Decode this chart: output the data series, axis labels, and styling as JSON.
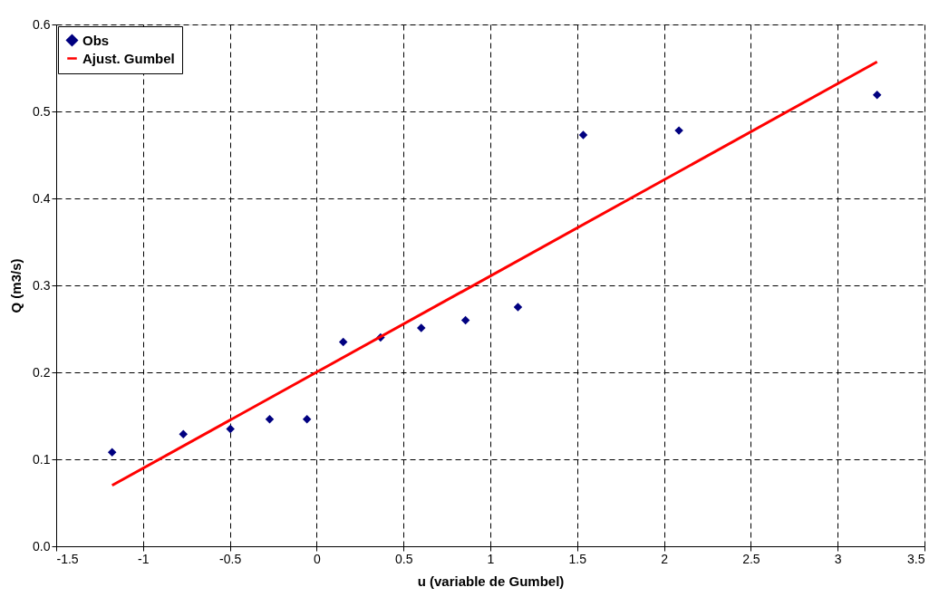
{
  "chart_data": {
    "type": "scatter",
    "xlabel": "u (variable de Gumbel)",
    "ylabel": "Q (m3/s)",
    "series": [
      {
        "name": "Obs",
        "color": "#000080",
        "marker": "diamond",
        "x": [
          -1.178,
          -0.768,
          -0.497,
          -0.271,
          -0.056,
          0.153,
          0.368,
          0.602,
          0.857,
          1.159,
          1.535,
          2.086,
          3.227
        ],
        "values": [
          0.108,
          0.129,
          0.135,
          0.146,
          0.146,
          0.235,
          0.24,
          0.251,
          0.26,
          0.275,
          0.473,
          0.478,
          0.519
        ]
      },
      {
        "name": "Ajust. Gumbel",
        "type": "line",
        "color": "#ff0000",
        "line_style": "solid",
        "x": [
          -1.178,
          3.227
        ],
        "values": [
          0.07,
          0.557
        ]
      }
    ],
    "xlim": [
      -1.5,
      3.5
    ],
    "xticks": [
      -1.5,
      -1,
      -0.5,
      0,
      0.5,
      1,
      1.5,
      2,
      2.5,
      3,
      3.5
    ],
    "ylim": [
      0,
      0.6
    ],
    "yticks": [
      {
        "value": 0,
        "label": "0.0"
      },
      0.1,
      0.2,
      0.3,
      0.4,
      0.5,
      0.6
    ],
    "grid": true,
    "legend": "top left"
  }
}
